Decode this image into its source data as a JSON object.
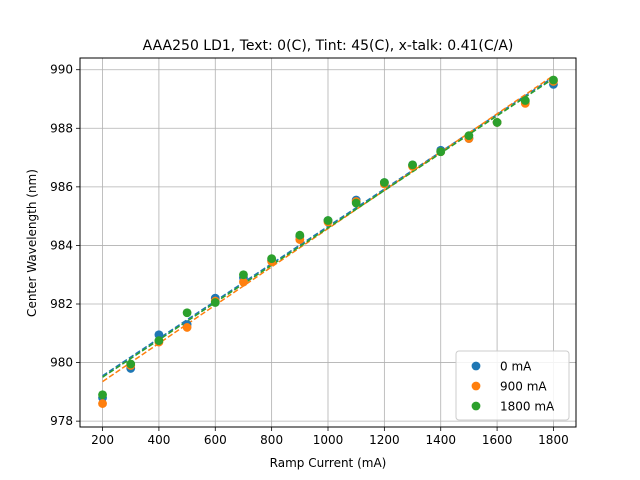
{
  "chart_data": {
    "type": "scatter",
    "title": "AAA250 LD1, Text: 0(C), Tint: 45(C), x-talk: 0.41(C/A)",
    "xlabel": "Ramp Current (mA)",
    "ylabel": "Center Wavelength (nm)",
    "xlim": [
      120,
      1880
    ],
    "ylim": [
      977.8,
      990.4
    ],
    "xticks": [
      200,
      400,
      600,
      800,
      1000,
      1200,
      1400,
      1600,
      1800
    ],
    "yticks": [
      978,
      980,
      982,
      984,
      986,
      988,
      990
    ],
    "grid": true,
    "legend_position": "bottom-right",
    "series": [
      {
        "name": "0 mA",
        "color": "#1f77b4",
        "x": [
          200,
          300,
          400,
          500,
          600,
          700,
          800,
          900,
          1000,
          1100,
          1200,
          1300,
          1400,
          1500,
          1600,
          1700,
          1800
        ],
        "y": [
          978.8,
          979.8,
          980.95,
          981.3,
          982.2,
          982.9,
          983.5,
          984.3,
          984.85,
          985.55,
          986.15,
          986.75,
          987.25,
          987.65,
          988.2,
          988.9,
          989.5
        ],
        "fit": [
          979.55,
          989.75
        ]
      },
      {
        "name": "900 mA",
        "color": "#ff7f0e",
        "x": [
          200,
          300,
          400,
          500,
          600,
          700,
          800,
          900,
          1000,
          1100,
          1200,
          1300,
          1400,
          1500,
          1600,
          1700,
          1800
        ],
        "y": [
          978.6,
          979.9,
          980.7,
          981.2,
          982.1,
          982.75,
          983.45,
          984.2,
          984.8,
          985.5,
          986.1,
          986.7,
          987.2,
          987.65,
          988.2,
          988.85,
          989.6
        ],
        "fit": [
          979.35,
          989.8
        ]
      },
      {
        "name": "1800 mA",
        "color": "#2ca02c",
        "x": [
          200,
          300,
          400,
          500,
          600,
          700,
          800,
          900,
          1000,
          1100,
          1200,
          1300,
          1400,
          1500,
          1600,
          1700,
          1800
        ],
        "y": [
          978.9,
          979.95,
          980.75,
          981.7,
          982.05,
          983.0,
          983.55,
          984.35,
          984.85,
          985.45,
          986.15,
          986.75,
          987.2,
          987.75,
          988.2,
          988.95,
          989.65
        ],
        "fit": [
          979.5,
          989.7
        ]
      }
    ]
  }
}
